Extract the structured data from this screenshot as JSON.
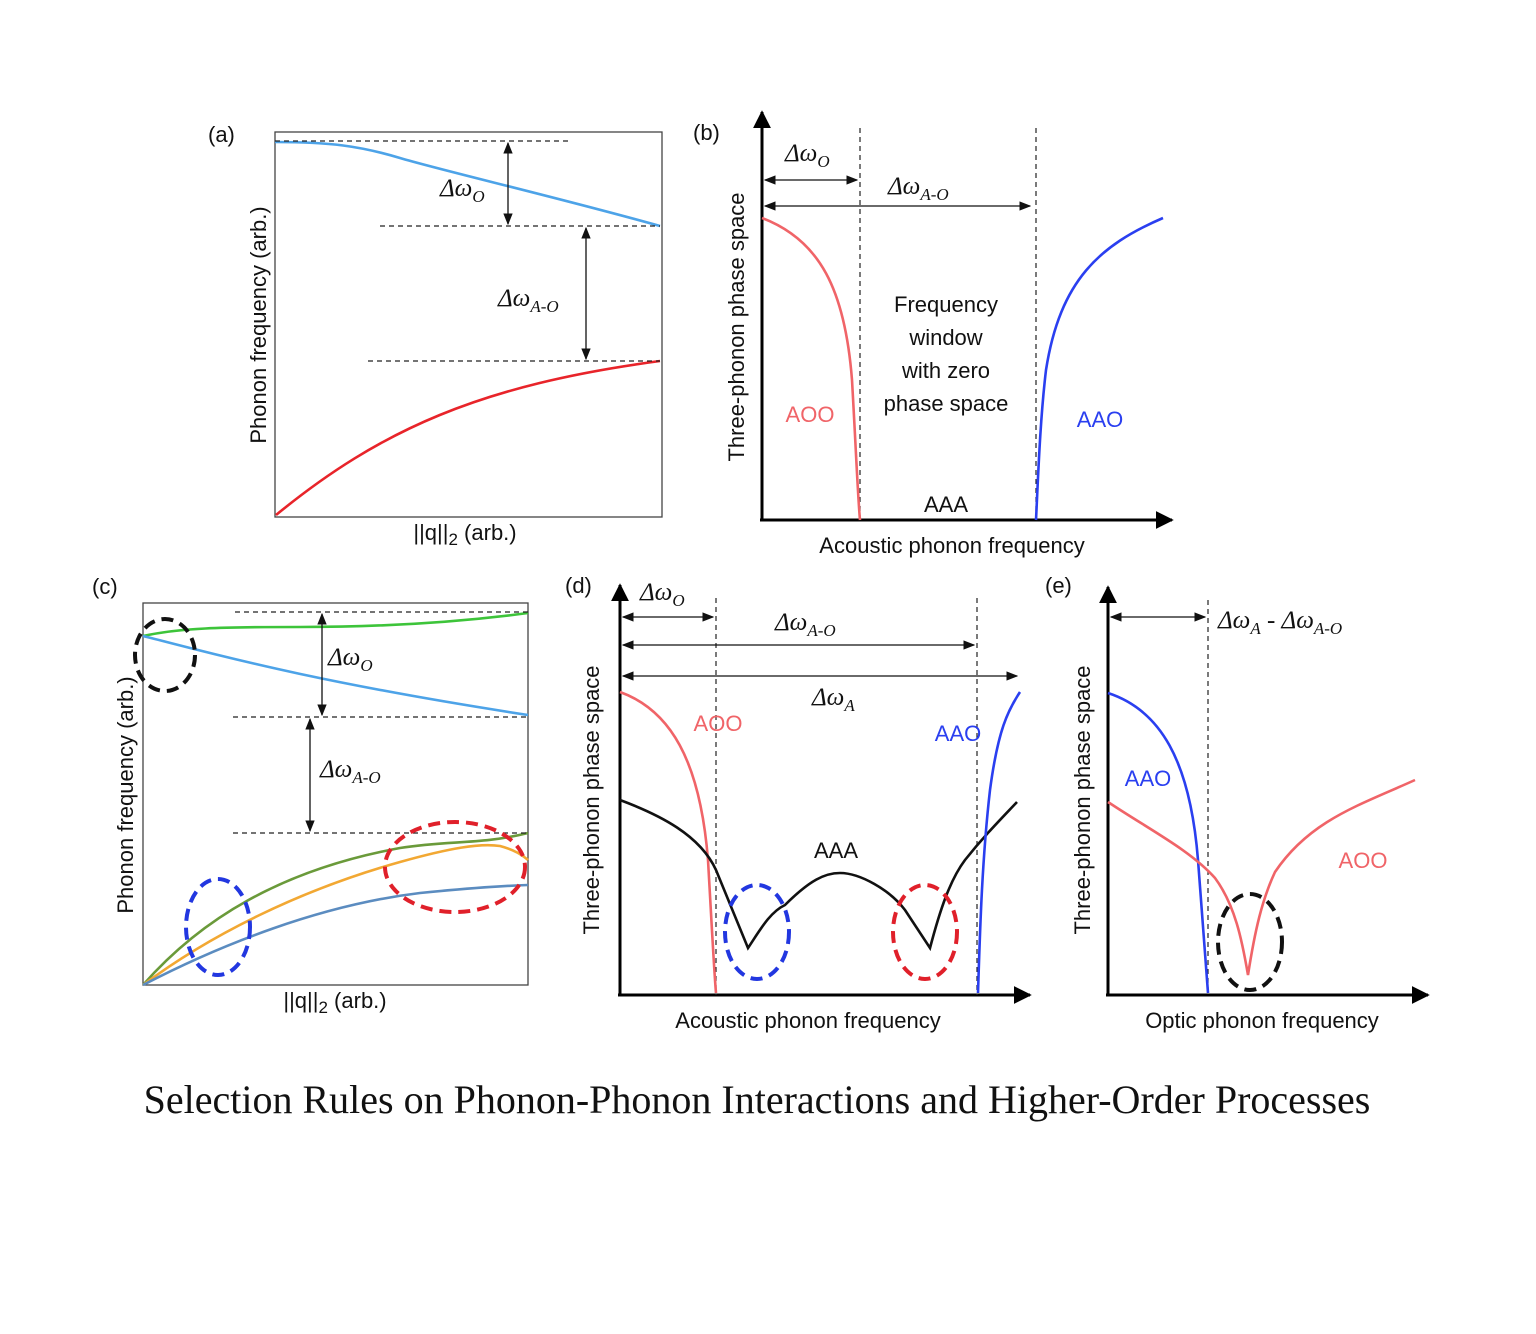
{
  "panels": {
    "a": {
      "label": "(a)",
      "y_label": "Phonon frequency (arb.)",
      "x_label": {
        "text": "||q||",
        "sub": "2",
        "post": " (arb.)"
      },
      "delta_o": {
        "symbol": "Δω",
        "sub": "O"
      },
      "delta_a_o": {
        "symbol": "Δω",
        "sub": "A-O"
      }
    },
    "b": {
      "label": "(b)",
      "y_label": "Three-phonon phase space",
      "x_label": "Acoustic phonon frequency",
      "delta_o": {
        "symbol": "Δω",
        "sub": "O"
      },
      "delta_a_o": {
        "symbol": "Δω",
        "sub": "A-O"
      },
      "window_text": [
        "Frequency",
        "window",
        "with zero",
        "phase space"
      ],
      "aoo": "AOO",
      "aao": "AAO",
      "aaa": "AAA"
    },
    "c": {
      "label": "(c)",
      "y_label": "Phonon frequency (arb.)",
      "x_label": {
        "text": "||q||",
        "sub": "2",
        "post": " (arb.)"
      },
      "delta_o": {
        "symbol": "Δω",
        "sub": "O"
      },
      "delta_a_o": {
        "symbol": "Δω",
        "sub": "A-O"
      }
    },
    "d": {
      "label": "(d)",
      "y_label": "Three-phonon phase space",
      "x_label": "Acoustic phonon frequency",
      "delta_o": {
        "symbol": "Δω",
        "sub": "O"
      },
      "delta_a_o": {
        "symbol": "Δω",
        "sub": "A-O"
      },
      "delta_a": {
        "symbol": "Δω",
        "sub": "A"
      },
      "aoo": "AOO",
      "aao": "AAO",
      "aaa": "AAA"
    },
    "e": {
      "label": "(e)",
      "y_label": "Three-phonon phase space",
      "x_label": "Optic phonon frequency",
      "delta": {
        "symbol_1": "Δω",
        "sub_1": "A",
        "separator": " - ",
        "symbol_2": "Δω",
        "sub_2": "A-O"
      },
      "aao": "AAO",
      "aoo": "AOO"
    }
  },
  "caption": "Selection Rules on Phonon-Phonon Interactions and Higher-Order Processes"
}
